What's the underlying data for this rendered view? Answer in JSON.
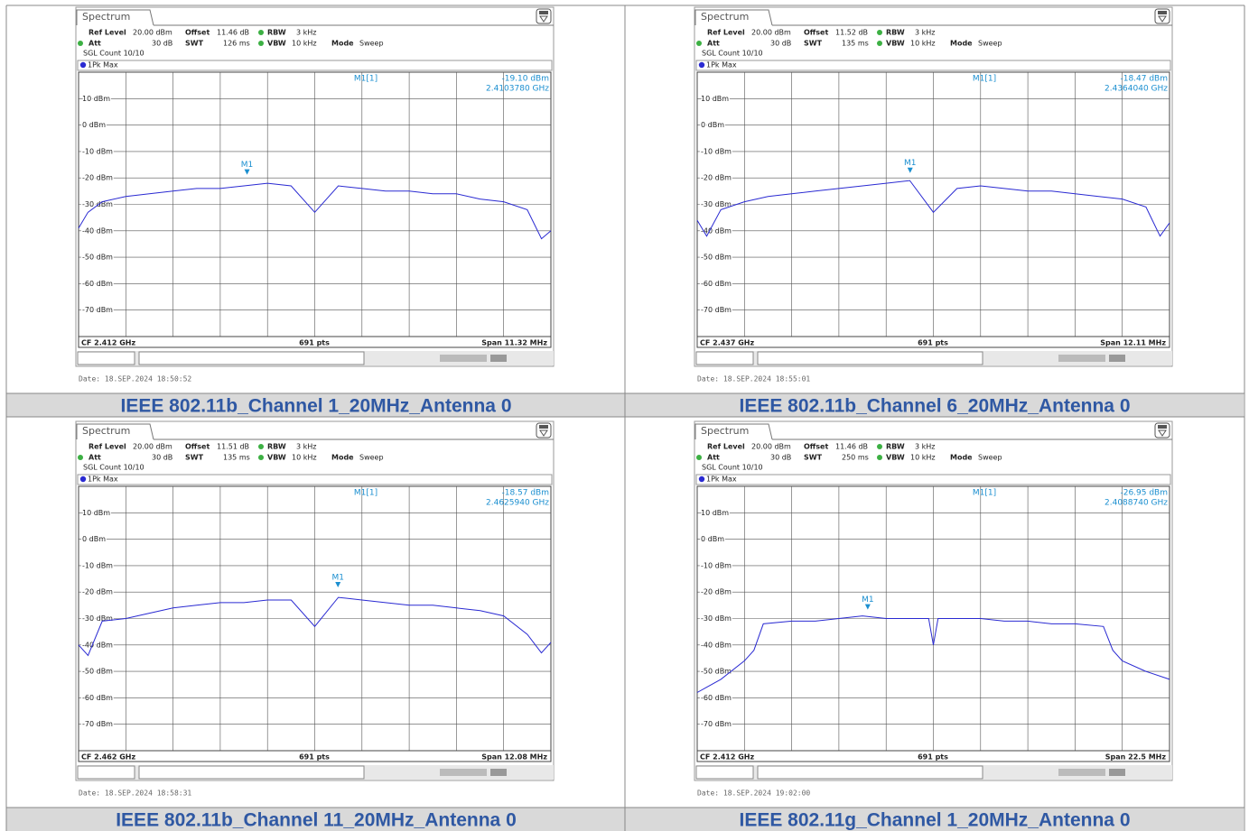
{
  "chart_data": [
    {
      "type": "line",
      "title": "Spectrum",
      "settings": [
        {
          "label": "Ref Level",
          "value": "20.00 dBm"
        },
        {
          "label": "Offset",
          "value": "11.46 dB"
        },
        {
          "label": "RBW",
          "value": "3 kHz"
        },
        {
          "label": "Att",
          "value": "30 dB"
        },
        {
          "label": "SWT",
          "value": "126 ms"
        },
        {
          "label": "VBW",
          "value": "10 kHz"
        },
        {
          "label": "Mode",
          "value": "Sweep"
        }
      ],
      "count": "SGL Count 10/10",
      "center": "CF 2.412 GHz",
      "points": "691 pts",
      "span": "Span 11.32 MHz",
      "date": "Date: 18.SEP.2024  18:50:52",
      "caption": "IEEE 802.11b_Channel 1_20MHz_Antenna 0",
      "xlim": [
        2.40634,
        2.41766
      ],
      "ylim": [
        -80,
        20
      ],
      "yticks": [
        {
          "value": 10,
          "label": "10 dBm"
        },
        {
          "value": 0,
          "label": "0 dBm"
        },
        {
          "value": -10,
          "label": "-10 dBm"
        },
        {
          "value": -20,
          "label": "-20 dBm"
        },
        {
          "value": -30,
          "label": "-30 dBm"
        },
        {
          "value": -40,
          "label": "-40 dBm"
        },
        {
          "value": -50,
          "label": "-50 dBm"
        },
        {
          "value": -60,
          "label": "-60 dBm"
        },
        {
          "value": -70,
          "label": "-70 dBm"
        }
      ],
      "grid": true,
      "x": [
        2.40634,
        2.406566,
        2.406906,
        2.407472,
        2.408038,
        2.408604,
        2.40917,
        2.409736,
        2.410302,
        2.410868,
        2.411434,
        2.412,
        2.412566,
        2.413132,
        2.413698,
        2.414264,
        2.41483,
        2.415396,
        2.415962,
        2.416528,
        2.417094,
        2.417434,
        2.41766
      ],
      "series": [
        {
          "name": "1Pk Max",
          "color": "#2a2ad2",
          "values": [
            -39,
            -33,
            -29,
            -27,
            -26,
            -25,
            -24,
            -24,
            -23,
            -22,
            -23,
            -33,
            -23,
            -24,
            -25,
            -25,
            -26,
            -26,
            -28,
            -29,
            -32,
            -43,
            -40
          ]
        }
      ],
      "marker": {
        "name": "M1[1]",
        "label": "M1",
        "x": 2.410378,
        "value": -19.1,
        "value_label": "-19.10 dBm",
        "x_label": "2.4103780 GHz"
      }
    },
    {
      "type": "line",
      "title": "Spectrum",
      "settings": [
        {
          "label": "Ref Level",
          "value": "20.00 dBm"
        },
        {
          "label": "Offset",
          "value": "11.52 dB"
        },
        {
          "label": "RBW",
          "value": "3 kHz"
        },
        {
          "label": "Att",
          "value": "30 dB"
        },
        {
          "label": "SWT",
          "value": "135 ms"
        },
        {
          "label": "VBW",
          "value": "10 kHz"
        },
        {
          "label": "Mode",
          "value": "Sweep"
        }
      ],
      "count": "SGL Count 10/10",
      "center": "CF 2.437 GHz",
      "points": "691 pts",
      "span": "Span 12.11 MHz",
      "date": "Date: 18.SEP.2024  18:55:01",
      "caption": "IEEE 802.11b_Channel 6_20MHz_Antenna 0",
      "xlim": [
        2.430945,
        2.443055
      ],
      "ylim": [
        -80,
        20
      ],
      "yticks": [
        {
          "value": 10,
          "label": "10 dBm"
        },
        {
          "value": 0,
          "label": "0 dBm"
        },
        {
          "value": -10,
          "label": "-10 dBm"
        },
        {
          "value": -20,
          "label": "-20 dBm"
        },
        {
          "value": -30,
          "label": "-30 dBm"
        },
        {
          "value": -40,
          "label": "-40 dBm"
        },
        {
          "value": -50,
          "label": "-50 dBm"
        },
        {
          "value": -60,
          "label": "-60 dBm"
        },
        {
          "value": -70,
          "label": "-70 dBm"
        }
      ],
      "grid": true,
      "x": [
        2.430945,
        2.431187,
        2.431551,
        2.432156,
        2.432762,
        2.433367,
        2.433973,
        2.434578,
        2.435184,
        2.435789,
        2.436395,
        2.437,
        2.437606,
        2.438211,
        2.438817,
        2.439422,
        2.440028,
        2.440633,
        2.441239,
        2.441844,
        2.44245,
        2.442813,
        2.443055
      ],
      "series": [
        {
          "name": "1Pk Max",
          "color": "#2a2ad2",
          "values": [
            -36,
            -42,
            -32,
            -29,
            -27,
            -26,
            -25,
            -24,
            -23,
            -22,
            -21,
            -33,
            -24,
            -23,
            -24,
            -25,
            -25,
            -26,
            -27,
            -28,
            -31,
            -42,
            -37
          ]
        }
      ],
      "marker": {
        "name": "M1[1]",
        "label": "M1",
        "x": 2.436404,
        "value": -18.47,
        "value_label": "-18.47 dBm",
        "x_label": "2.4364040 GHz"
      }
    },
    {
      "type": "line",
      "title": "Spectrum",
      "settings": [
        {
          "label": "Ref Level",
          "value": "20.00 dBm"
        },
        {
          "label": "Offset",
          "value": "11.51 dB"
        },
        {
          "label": "RBW",
          "value": "3 kHz"
        },
        {
          "label": "Att",
          "value": "30 dB"
        },
        {
          "label": "SWT",
          "value": "135 ms"
        },
        {
          "label": "VBW",
          "value": "10 kHz"
        },
        {
          "label": "Mode",
          "value": "Sweep"
        }
      ],
      "count": "SGL Count 10/10",
      "center": "CF 2.462 GHz",
      "points": "691 pts",
      "span": "Span 12.08 MHz",
      "date": "Date: 18.SEP.2024  18:58:31",
      "caption": "IEEE 802.11b_Channel 11_20MHz_Antenna 0",
      "xlim": [
        2.45596,
        2.46804
      ],
      "ylim": [
        -80,
        20
      ],
      "yticks": [
        {
          "value": 10,
          "label": "10 dBm"
        },
        {
          "value": 0,
          "label": "0 dBm"
        },
        {
          "value": -10,
          "label": "-10 dBm"
        },
        {
          "value": -20,
          "label": "-20 dBm"
        },
        {
          "value": -30,
          "label": "-30 dBm"
        },
        {
          "value": -40,
          "label": "-40 dBm"
        },
        {
          "value": -50,
          "label": "-50 dBm"
        },
        {
          "value": -60,
          "label": "-60 dBm"
        },
        {
          "value": -70,
          "label": "-70 dBm"
        }
      ],
      "grid": true,
      "x": [
        2.45596,
        2.456202,
        2.456564,
        2.457168,
        2.457772,
        2.458376,
        2.45898,
        2.459584,
        2.460188,
        2.460792,
        2.461396,
        2.462,
        2.462604,
        2.463208,
        2.463812,
        2.464416,
        2.46502,
        2.465624,
        2.466228,
        2.466832,
        2.467436,
        2.467798,
        2.46804
      ],
      "series": [
        {
          "name": "1Pk Max",
          "color": "#2a2ad2",
          "values": [
            -40,
            -44,
            -31,
            -30,
            -28,
            -26,
            -25,
            -24,
            -24,
            -23,
            -23,
            -33,
            -22,
            -23,
            -24,
            -25,
            -25,
            -26,
            -27,
            -29,
            -36,
            -43,
            -39
          ]
        }
      ],
      "marker": {
        "name": "M1[1]",
        "label": "M1",
        "x": 2.462594,
        "value": -18.57,
        "value_label": "-18.57 dBm",
        "x_label": "2.4625940 GHz"
      }
    },
    {
      "type": "line",
      "title": "Spectrum",
      "settings": [
        {
          "label": "Ref Level",
          "value": "20.00 dBm"
        },
        {
          "label": "Offset",
          "value": "11.46 dB"
        },
        {
          "label": "RBW",
          "value": "3 kHz"
        },
        {
          "label": "Att",
          "value": "30 dB"
        },
        {
          "label": "SWT",
          "value": "250 ms"
        },
        {
          "label": "VBW",
          "value": "10 kHz"
        },
        {
          "label": "Mode",
          "value": "Sweep"
        }
      ],
      "count": "SGL Count 10/10",
      "center": "CF 2.412 GHz",
      "points": "691 pts",
      "span": "Span 22.5 MHz",
      "date": "Date: 18.SEP.2024  19:02:00",
      "caption": "IEEE 802.11g_Channel 1_20MHz_Antenna 0",
      "xlim": [
        2.40075,
        2.42325
      ],
      "ylim": [
        -80,
        20
      ],
      "yticks": [
        {
          "value": 10,
          "label": "10 dBm"
        },
        {
          "value": 0,
          "label": "0 dBm"
        },
        {
          "value": -10,
          "label": "-10 dBm"
        },
        {
          "value": -20,
          "label": "-20 dBm"
        },
        {
          "value": -30,
          "label": "-30 dBm"
        },
        {
          "value": -40,
          "label": "-40 dBm"
        },
        {
          "value": -50,
          "label": "-50 dBm"
        },
        {
          "value": -60,
          "label": "-60 dBm"
        },
        {
          "value": -70,
          "label": "-70 dBm"
        }
      ],
      "grid": true,
      "x": [
        2.40075,
        2.401875,
        2.403,
        2.40345,
        2.4039,
        2.40525,
        2.406375,
        2.4075,
        2.408625,
        2.40975,
        2.410875,
        2.411775,
        2.412,
        2.412225,
        2.413125,
        2.41425,
        2.415375,
        2.4165,
        2.417625,
        2.41875,
        2.4201,
        2.42055,
        2.421,
        2.422125,
        2.42325
      ],
      "series": [
        {
          "name": "1Pk Max",
          "color": "#2a2ad2",
          "values": [
            -58,
            -53,
            -46,
            -42,
            -32,
            -31,
            -31,
            -30,
            -29,
            -30,
            -30,
            -30,
            -40,
            -30,
            -30,
            -30,
            -31,
            -31,
            -32,
            -32,
            -33,
            -42,
            -46,
            -50,
            -53
          ]
        }
      ],
      "marker": {
        "name": "M1[1]",
        "label": "M1",
        "x": 2.408874,
        "value": -26.95,
        "value_label": "-26.95 dBm",
        "x_label": "2.4088740 GHz"
      }
    }
  ]
}
